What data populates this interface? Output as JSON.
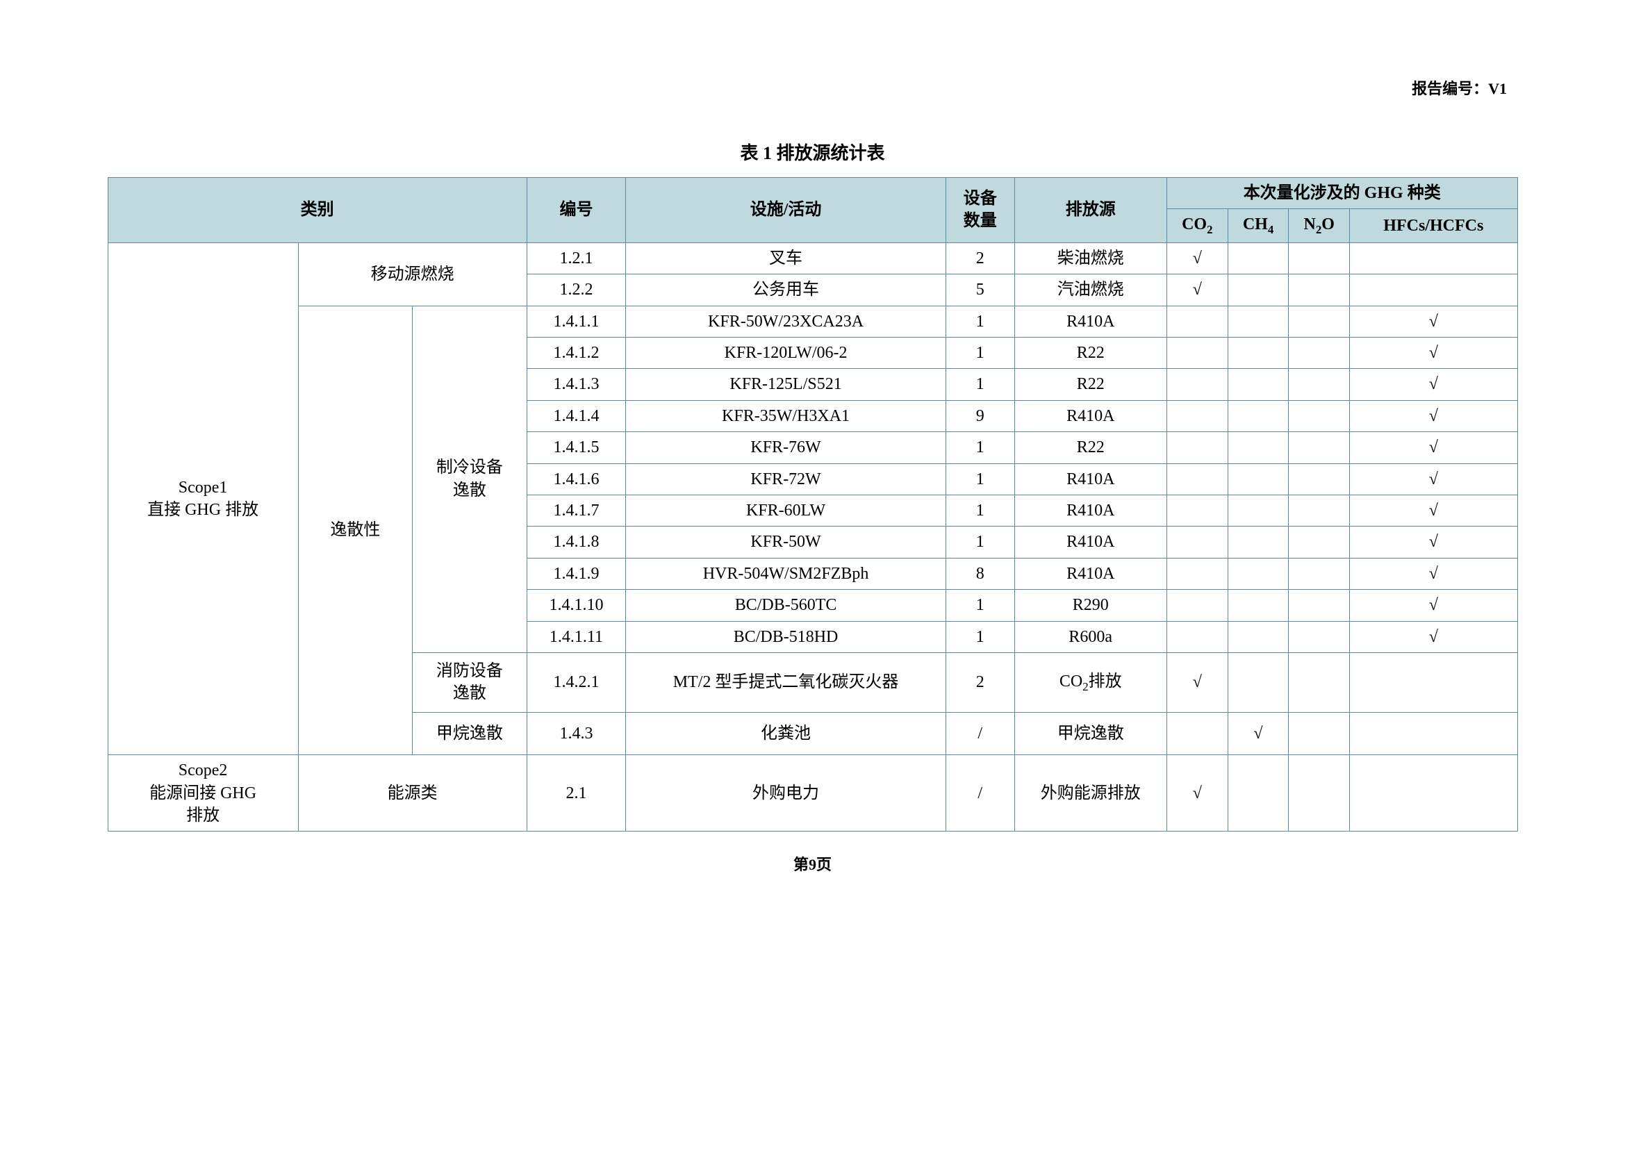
{
  "report_no_label": "报告编号：",
  "report_no_value": "V1",
  "table_caption": "表 1 排放源统计表",
  "page_footer": "第9页",
  "colors": {
    "header_bg": "#bfd9de",
    "border": "#5b8aa3",
    "page_bg": "#ffffff"
  },
  "header": {
    "category": "类别",
    "code": "编号",
    "facility": "设施/活动",
    "qty_line1": "设备",
    "qty_line2": "数量",
    "source": "排放源",
    "ghg_group": "本次量化涉及的 GHG 种类",
    "ghg": {
      "co2": "CO",
      "co2_sub": "2",
      "ch4": "CH",
      "ch4_sub": "4",
      "n2o": "N",
      "n2o_sub": "2",
      "n2o_tail": "O",
      "hfc": "HFCs/HCFCs"
    }
  },
  "scope1_label_line1": "Scope1",
  "scope1_label_line2": "直接 GHG 排放",
  "scope2_label_line1": "Scope2",
  "scope2_label_line2": "能源间接 GHG",
  "scope2_label_line3": "排放",
  "cat_mobile": "移动源燃烧",
  "cat_fugitive": "逸散性",
  "cat_refrig_line1": "制冷设备",
  "cat_refrig_line2": "逸散",
  "cat_fire_line1": "消防设备",
  "cat_fire_line2": "逸散",
  "cat_methane": "甲烷逸散",
  "cat_energy": "能源类",
  "rows": {
    "r0": {
      "code": "1.2.1",
      "fac": "叉车",
      "qty": "2",
      "src": "柴油燃烧",
      "co2": "√",
      "ch4": "",
      "n2o": "",
      "hfc": ""
    },
    "r1": {
      "code": "1.2.2",
      "fac": "公务用车",
      "qty": "5",
      "src": "汽油燃烧",
      "co2": "√",
      "ch4": "",
      "n2o": "",
      "hfc": ""
    },
    "r2": {
      "code": "1.4.1.1",
      "fac": "KFR-50W/23XCA23A",
      "qty": "1",
      "src": "R410A",
      "co2": "",
      "ch4": "",
      "n2o": "",
      "hfc": "√"
    },
    "r3": {
      "code": "1.4.1.2",
      "fac": "KFR-120LW/06-2",
      "qty": "1",
      "src": "R22",
      "co2": "",
      "ch4": "",
      "n2o": "",
      "hfc": "√"
    },
    "r4": {
      "code": "1.4.1.3",
      "fac": "KFR-125L/S521",
      "qty": "1",
      "src": "R22",
      "co2": "",
      "ch4": "",
      "n2o": "",
      "hfc": "√"
    },
    "r5": {
      "code": "1.4.1.4",
      "fac": "KFR-35W/H3XA1",
      "qty": "9",
      "src": "R410A",
      "co2": "",
      "ch4": "",
      "n2o": "",
      "hfc": "√"
    },
    "r6": {
      "code": "1.4.1.5",
      "fac": "KFR-76W",
      "qty": "1",
      "src": "R22",
      "co2": "",
      "ch4": "",
      "n2o": "",
      "hfc": "√"
    },
    "r7": {
      "code": "1.4.1.6",
      "fac": "KFR-72W",
      "qty": "1",
      "src": "R410A",
      "co2": "",
      "ch4": "",
      "n2o": "",
      "hfc": "√"
    },
    "r8": {
      "code": "1.4.1.7",
      "fac": "KFR-60LW",
      "qty": "1",
      "src": "R410A",
      "co2": "",
      "ch4": "",
      "n2o": "",
      "hfc": "√"
    },
    "r9": {
      "code": "1.4.1.8",
      "fac": "KFR-50W",
      "qty": "1",
      "src": "R410A",
      "co2": "",
      "ch4": "",
      "n2o": "",
      "hfc": "√"
    },
    "r10": {
      "code": "1.4.1.9",
      "fac": "HVR-504W/SM2FZBph",
      "qty": "8",
      "src": "R410A",
      "co2": "",
      "ch4": "",
      "n2o": "",
      "hfc": "√"
    },
    "r11": {
      "code": "1.4.1.10",
      "fac": "BC/DB-560TC",
      "qty": "1",
      "src": "R290",
      "co2": "",
      "ch4": "",
      "n2o": "",
      "hfc": "√"
    },
    "r12": {
      "code": "1.4.1.11",
      "fac": "BC/DB-518HD",
      "qty": "1",
      "src": "R600a",
      "co2": "",
      "ch4": "",
      "n2o": "",
      "hfc": "√"
    },
    "r13": {
      "code": "1.4.2.1",
      "fac": "MT/2 型手提式二氧化碳灭火器",
      "qty": "2",
      "src_pre": "CO",
      "src_sub": "2",
      "src_post": "排放",
      "co2": "√",
      "ch4": "",
      "n2o": "",
      "hfc": ""
    },
    "r14": {
      "code": "1.4.3",
      "fac": "化粪池",
      "qty": "/",
      "src": "甲烷逸散",
      "co2": "",
      "ch4": "√",
      "n2o": "",
      "hfc": ""
    },
    "r15": {
      "code": "2.1",
      "fac": "外购电力",
      "qty": "/",
      "src": "外购能源排放",
      "co2": "√",
      "ch4": "",
      "n2o": "",
      "hfc": ""
    }
  }
}
